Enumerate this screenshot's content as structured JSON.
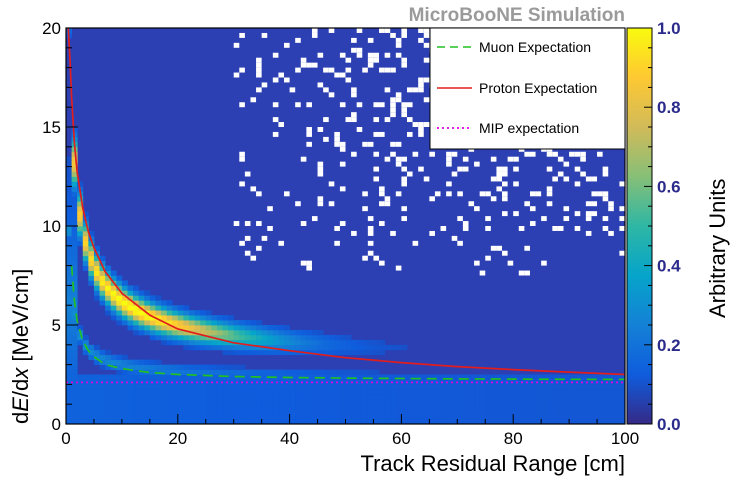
{
  "chart_data": {
    "type": "heatmap",
    "title": "MicroBooNE Simulation",
    "xlabel": "Track Residual Range [cm]",
    "ylabel_parts": [
      "d",
      "E",
      "/d",
      "x",
      " [MeV/cm]"
    ],
    "colorbar_label": "Arbitrary Units",
    "xlim": [
      0,
      100
    ],
    "ylim": [
      0,
      20
    ],
    "zlim": [
      0,
      1
    ],
    "x_ticks": [
      "0",
      "20",
      "40",
      "60",
      "80",
      "100"
    ],
    "y_ticks": [
      "0",
      "5",
      "10",
      "15",
      "20"
    ],
    "z_ticks": [
      "0.0",
      "0.2",
      "0.4",
      "0.6",
      "0.8",
      "1.0"
    ],
    "grid": false,
    "legend_position": "top-right",
    "series": [
      {
        "name": "Muon Expectation",
        "color": "#22c022",
        "style": "dashed",
        "x": [
          1,
          1.5,
          2,
          3,
          4,
          5,
          7,
          10,
          15,
          20,
          30,
          40,
          50,
          60,
          70,
          80,
          90,
          100
        ],
        "y": [
          8.0,
          6.2,
          5.2,
          4.2,
          3.7,
          3.4,
          3.0,
          2.8,
          2.6,
          2.5,
          2.4,
          2.35,
          2.32,
          2.3,
          2.28,
          2.27,
          2.26,
          2.25
        ]
      },
      {
        "name": "Proton Expectation",
        "color": "#e01e1e",
        "style": "solid",
        "x": [
          0.4,
          0.7,
          1,
          1.5,
          2,
          3,
          4,
          5,
          7,
          10,
          15,
          20,
          30,
          40,
          50,
          60,
          70,
          80,
          90,
          100
        ],
        "y": [
          20,
          18.5,
          16.5,
          14.2,
          12.7,
          10.9,
          9.7,
          8.9,
          7.7,
          6.6,
          5.5,
          4.8,
          4.1,
          3.7,
          3.35,
          3.1,
          2.9,
          2.75,
          2.62,
          2.5
        ]
      },
      {
        "name": "MIP expectation",
        "color": "#e000e0",
        "style": "dotted",
        "x": [
          0,
          100
        ],
        "y": [
          2.1,
          2.1
        ]
      }
    ],
    "colormap": [
      "#352a87",
      "#0f5cdd",
      "#1481d6",
      "#06a4ca",
      "#2eb7a4",
      "#87bf77",
      "#d1bb59",
      "#fec832",
      "#f9fb0e"
    ]
  }
}
